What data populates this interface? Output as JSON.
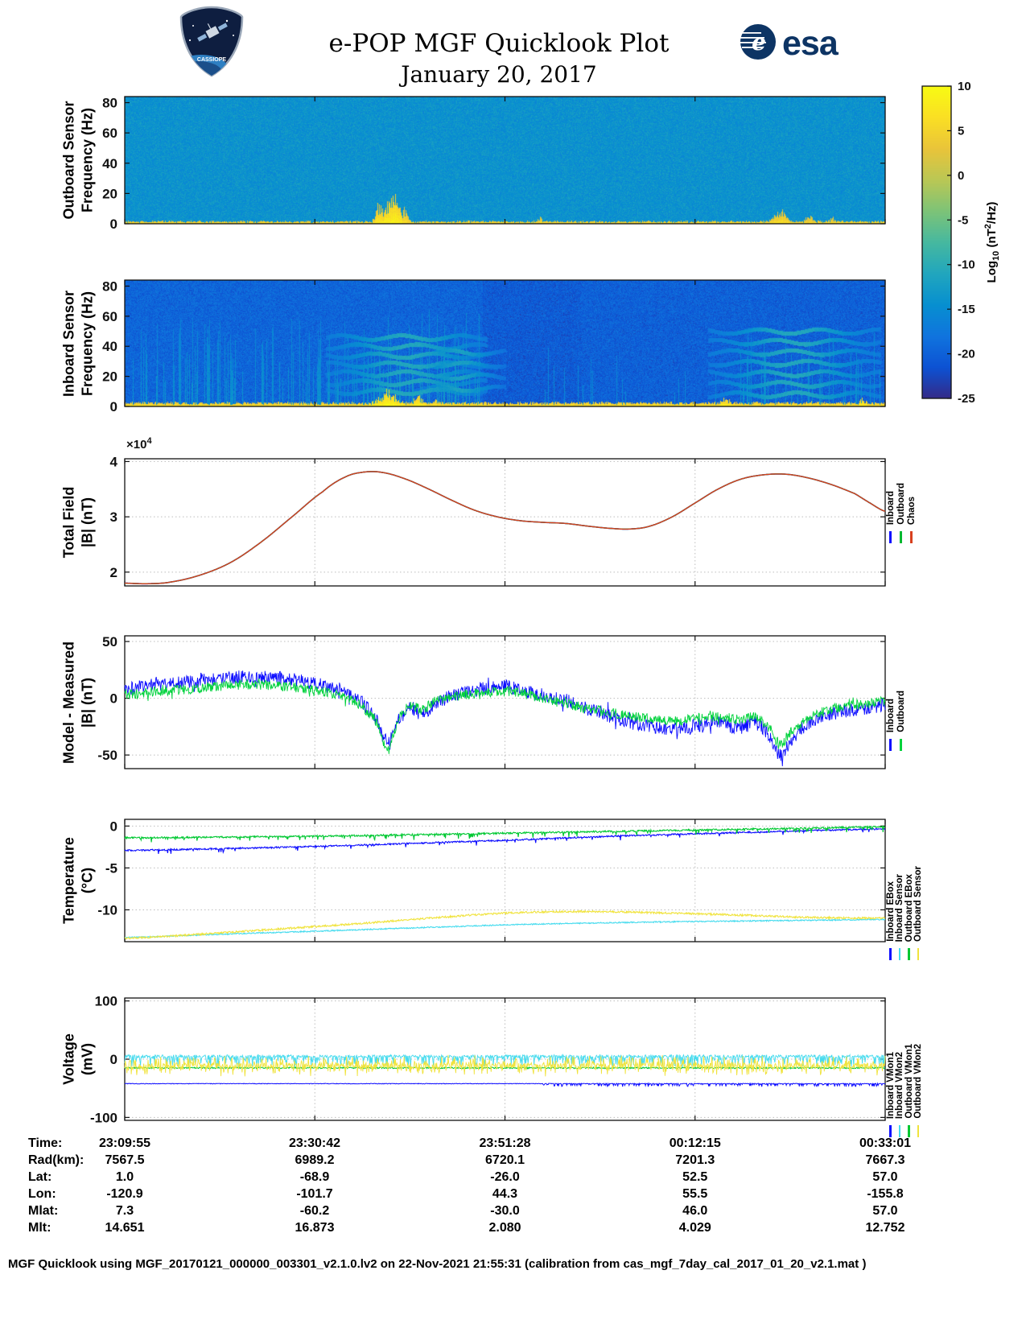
{
  "header": {
    "title": "e-POP MGF Quicklook Plot",
    "date": "January 20, 2017",
    "esa_text": "esa",
    "patch_text": "CASSIOPE"
  },
  "colorbar": {
    "range": [
      -25,
      10
    ],
    "ticks": [
      10,
      5,
      0,
      -5,
      -10,
      -15,
      -20,
      -25
    ],
    "label_parts": {
      "pre": "Log",
      "sub": "10",
      "mid": " (nT",
      "sup": "2",
      "post": "/Hz)"
    }
  },
  "chart_data": [
    {
      "id": "outboard-spectrogram",
      "type": "heatmap",
      "ylabel_lines": [
        "Outboard Sensor",
        "Frequency (Hz)"
      ],
      "ylim": [
        0,
        84
      ],
      "yticks": [
        0,
        20,
        40,
        60,
        80
      ],
      "value_range": [
        -25,
        10
      ],
      "background_level": -14,
      "noise_amp": 3,
      "low_freq_band": {
        "cutoff_hz": 1.6,
        "level": 7
      },
      "bursts": [
        {
          "x": 0.335,
          "width": 0.012,
          "max_hz": 18,
          "level": 3
        },
        {
          "x": 0.352,
          "width": 0.018,
          "max_hz": 26,
          "level": 4
        },
        {
          "x": 0.368,
          "width": 0.01,
          "max_hz": 13,
          "level": 2
        },
        {
          "x": 0.545,
          "width": 0.008,
          "max_hz": 6,
          "level": 1
        },
        {
          "x": 0.862,
          "width": 0.02,
          "max_hz": 11,
          "level": 2
        },
        {
          "x": 0.9,
          "width": 0.012,
          "max_hz": 8,
          "level": 1
        },
        {
          "x": 0.93,
          "width": 0.008,
          "max_hz": 6,
          "level": 1
        }
      ]
    },
    {
      "id": "inboard-spectrogram",
      "type": "heatmap",
      "ylabel_lines": [
        "Inboard Sensor",
        "Frequency (Hz)"
      ],
      "ylim": [
        0,
        84
      ],
      "yticks": [
        0,
        20,
        40,
        60,
        80
      ],
      "value_range": [
        -25,
        10
      ],
      "background_level": -20,
      "noise_amp": 3,
      "low_freq_band": {
        "cutoff_hz": 2.4,
        "level": 7
      },
      "bg_steps": [
        {
          "x0": 0,
          "x1": 0.47,
          "delta": 0.5
        },
        {
          "x0": 0.47,
          "x1": 0.6,
          "delta": -0.5
        },
        {
          "x0": 0.6,
          "x1": 1,
          "delta": 0
        }
      ],
      "streak_regions": [
        {
          "x0": 0,
          "x1": 0.33,
          "density": 0.22,
          "max_hz": 60,
          "level": -14
        },
        {
          "x0": 0.33,
          "x1": 0.47,
          "density": 0.3,
          "max_hz": 65,
          "level": -13
        },
        {
          "x0": 0.55,
          "x1": 0.63,
          "density": 0.12,
          "max_hz": 45,
          "level": -15
        },
        {
          "x0": 0.63,
          "x1": 0.8,
          "density": 0.08,
          "max_hz": 35,
          "level": -15
        },
        {
          "x0": 0.8,
          "x1": 1.0,
          "density": 0.18,
          "max_hz": 55,
          "level": -14
        }
      ],
      "band_structures": [
        {
          "center_x": 0.37,
          "width": 0.07,
          "freqs": [
            10,
            16,
            22,
            28,
            34,
            40,
            46
          ],
          "level": -11
        },
        {
          "center_x": 0.44,
          "width": 0.04,
          "freqs": [
            12,
            20,
            28,
            36
          ],
          "level": -12
        },
        {
          "center_x": 0.88,
          "width": 0.075,
          "freqs": [
            8,
            15,
            22,
            29,
            36,
            43,
            50
          ],
          "level": -11
        }
      ],
      "bursts": [
        {
          "x": 0.345,
          "width": 0.03,
          "max_hz": 13,
          "level": 5
        },
        {
          "x": 0.385,
          "width": 0.015,
          "max_hz": 9,
          "level": 4
        },
        {
          "x": 0.41,
          "width": 0.01,
          "max_hz": 7,
          "level": 3
        },
        {
          "x": 0.79,
          "width": 0.015,
          "max_hz": 8,
          "level": 4
        },
        {
          "x": 0.9,
          "width": 0.01,
          "max_hz": 6,
          "level": 3
        },
        {
          "x": 0.97,
          "width": 0.012,
          "max_hz": 7,
          "level": 4
        }
      ]
    },
    {
      "id": "total-field",
      "type": "line",
      "ylabel_lines": [
        "Total Field",
        "|B| (nT)"
      ],
      "ylim": [
        1.75,
        4.05
      ],
      "yticks": [
        2,
        3,
        4
      ],
      "scale_label": {
        "base": "×10",
        "exp": "4"
      },
      "x": [
        0,
        0.03,
        0.06,
        0.1,
        0.14,
        0.18,
        0.22,
        0.26,
        0.29,
        0.315,
        0.34,
        0.37,
        0.4,
        0.43,
        0.46,
        0.49,
        0.52,
        0.55,
        0.58,
        0.61,
        0.64,
        0.665,
        0.69,
        0.72,
        0.75,
        0.78,
        0.81,
        0.84,
        0.87,
        0.9,
        0.93,
        0.96,
        0.98,
        1.0
      ],
      "values": [
        1.8,
        1.79,
        1.82,
        1.95,
        2.18,
        2.55,
        3.0,
        3.45,
        3.72,
        3.81,
        3.8,
        3.68,
        3.5,
        3.3,
        3.12,
        3.0,
        2.93,
        2.9,
        2.88,
        2.83,
        2.79,
        2.78,
        2.83,
        3.0,
        3.25,
        3.5,
        3.68,
        3.76,
        3.77,
        3.7,
        3.58,
        3.42,
        3.25,
        3.1
      ],
      "series": [
        {
          "name": "Inboard",
          "color": "#0d0dff",
          "width": 1.6
        },
        {
          "name": "Outboard",
          "color": "#00b830",
          "width": 1.5
        },
        {
          "name": "Chaos",
          "color": "#d8401e",
          "width": 1.4
        }
      ]
    },
    {
      "id": "model-measured",
      "type": "line",
      "ylabel_lines": [
        "Model - Measured",
        "|B| (nT)"
      ],
      "ylim": [
        -62,
        55
      ],
      "yticks": [
        -50,
        0,
        50
      ],
      "series": [
        {
          "name": "Inboard",
          "color": "#0d0dff",
          "width": 0.9,
          "noise": 6,
          "spike": {
            "prob": 0.1,
            "amp": 7
          },
          "x": [
            0,
            0.04,
            0.08,
            0.12,
            0.16,
            0.2,
            0.24,
            0.28,
            0.31,
            0.33,
            0.345,
            0.36,
            0.375,
            0.39,
            0.41,
            0.44,
            0.47,
            0.5,
            0.53,
            0.56,
            0.6,
            0.64,
            0.68,
            0.72,
            0.75,
            0.78,
            0.81,
            0.83,
            0.85,
            0.862,
            0.875,
            0.89,
            0.91,
            0.94,
            0.97,
            1.0
          ],
          "values": [
            8,
            12,
            14,
            17,
            19,
            18,
            14,
            8,
            -2,
            -18,
            -38,
            -18,
            -8,
            -14,
            -4,
            4,
            8,
            10,
            6,
            1,
            -7,
            -16,
            -23,
            -27,
            -24,
            -22,
            -26,
            -22,
            -35,
            -50,
            -38,
            -27,
            -18,
            -12,
            -9,
            -6
          ]
        },
        {
          "name": "Outboard",
          "color": "#00d23c",
          "width": 0.9,
          "noise": 4.5,
          "spike": {
            "prob": 0.08,
            "amp": 5
          },
          "x": [
            0,
            0.04,
            0.08,
            0.12,
            0.16,
            0.2,
            0.24,
            0.28,
            0.31,
            0.33,
            0.345,
            0.36,
            0.375,
            0.39,
            0.41,
            0.44,
            0.47,
            0.5,
            0.53,
            0.56,
            0.6,
            0.64,
            0.68,
            0.72,
            0.75,
            0.78,
            0.81,
            0.83,
            0.85,
            0.862,
            0.875,
            0.89,
            0.91,
            0.94,
            0.97,
            1.0
          ],
          "values": [
            3,
            6,
            8,
            10,
            12,
            11,
            8,
            3,
            -6,
            -20,
            -42,
            -20,
            -6,
            -10,
            -2,
            2,
            5,
            6,
            3,
            -2,
            -8,
            -13,
            -17,
            -20,
            -18,
            -16,
            -19,
            -17,
            -28,
            -40,
            -30,
            -22,
            -14,
            -8,
            -5,
            -3
          ]
        }
      ]
    },
    {
      "id": "temperature",
      "type": "line",
      "ylabel_lines": [
        "Temperature",
        "(°C)"
      ],
      "ylim": [
        -13.8,
        0.8
      ],
      "yticks": [
        0,
        -5,
        -10
      ],
      "x": [
        0,
        0.1,
        0.2,
        0.3,
        0.4,
        0.5,
        0.6,
        0.7,
        0.8,
        0.9,
        1.0
      ],
      "series": [
        {
          "name": "Inboard EBox",
          "color": "#0d0dff",
          "width": 1.1,
          "noise": 0.09,
          "down_spike": {
            "prob": 0.05,
            "amp": 0.45
          },
          "values": [
            -2.9,
            -2.75,
            -2.55,
            -2.3,
            -2.0,
            -1.7,
            -1.35,
            -1.05,
            -0.8,
            -0.55,
            -0.35
          ]
        },
        {
          "name": "Inboard Sensor",
          "color": "#45dbee",
          "width": 1.1,
          "noise": 0.07,
          "values": [
            -13.3,
            -13.0,
            -12.7,
            -12.4,
            -12.1,
            -11.8,
            -11.6,
            -11.45,
            -11.35,
            -11.25,
            -11.15
          ]
        },
        {
          "name": "Outboard EBox",
          "color": "#00c832",
          "width": 1.1,
          "noise": 0.1,
          "down_spike": {
            "prob": 0.09,
            "amp": 0.55
          },
          "values": [
            -1.4,
            -1.35,
            -1.25,
            -1.15,
            -1.0,
            -0.85,
            -0.7,
            -0.55,
            -0.4,
            -0.25,
            -0.1
          ]
        },
        {
          "name": "Outboard Sensor",
          "color": "#f0e33c",
          "width": 1.1,
          "noise": 0.11,
          "values": [
            -13.4,
            -12.9,
            -12.3,
            -11.7,
            -11.0,
            -10.4,
            -10.2,
            -10.35,
            -10.6,
            -10.9,
            -11.0
          ]
        }
      ]
    },
    {
      "id": "voltage",
      "type": "line",
      "ylabel_lines": [
        "Voltage",
        "(mV)"
      ],
      "ylim": [
        -105,
        105
      ],
      "yticks": [
        -100,
        0,
        100
      ],
      "series": [
        {
          "name": "Inboard VMon1",
          "color": "#0d0dff",
          "width": 1,
          "x": [
            0,
            1
          ],
          "values": [
            -42,
            -42
          ],
          "noise": 0.5,
          "right_fuzz": {
            "x": 0.55,
            "prob": 0.25,
            "amp": 5
          }
        },
        {
          "name": "Inboard VMon2",
          "color": "#45dbee",
          "width": 0.9,
          "x": [
            0,
            1
          ],
          "values": [
            5,
            5
          ],
          "noise": 2.5,
          "down_spike": {
            "prob": 0.3,
            "amp": 18
          }
        },
        {
          "name": "Outboard VMon1",
          "color": "#00c832",
          "width": 1,
          "x": [
            0,
            1
          ],
          "values": [
            -15,
            -15
          ],
          "noise": 1.2
        },
        {
          "name": "Outboard VMon2",
          "color": "#f0e33c",
          "width": 0.9,
          "x": [
            0,
            1
          ],
          "values": [
            -11,
            -11
          ],
          "noise": 5,
          "spike": {
            "prob": 0.5,
            "amp": 14
          }
        }
      ]
    }
  ],
  "table": {
    "rows": [
      {
        "label": "Time:",
        "values": [
          "23:09:55",
          "23:30:42",
          "23:51:28",
          "00:12:15",
          "00:33:01"
        ]
      },
      {
        "label": "Rad(km):",
        "values": [
          "7567.5",
          "6989.2",
          "6720.1",
          "7201.3",
          "7667.3"
        ]
      },
      {
        "label": "Lat:",
        "values": [
          "1.0",
          "-68.9",
          "-26.0",
          "52.5",
          "57.0"
        ]
      },
      {
        "label": "Lon:",
        "values": [
          "-120.9",
          "-101.7",
          "44.3",
          "55.5",
          "-155.8"
        ]
      },
      {
        "label": "Mlat:",
        "values": [
          "7.3",
          "-60.2",
          "-30.0",
          "46.0",
          "57.0"
        ]
      },
      {
        "label": "Mlt:",
        "values": [
          "14.651",
          "16.873",
          "2.080",
          "4.029",
          "12.752"
        ]
      }
    ]
  },
  "footer": "MGF Quicklook using MGF_20170121_000000_003301_v2.1.0.lv2 on 22-Nov-2021 21:55:31 (calibration from cas_mgf_7day_cal_2017_01_20_v2.1.mat )"
}
